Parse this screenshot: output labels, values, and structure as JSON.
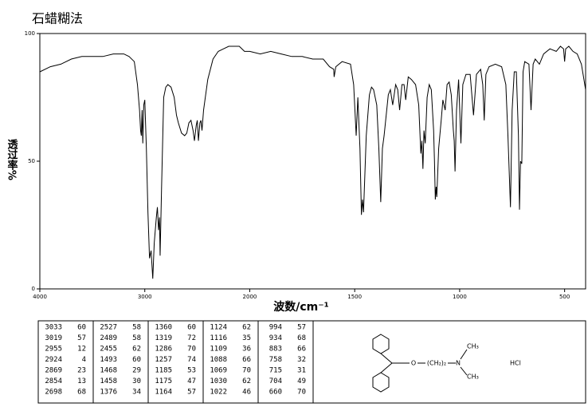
{
  "chart_data": {
    "type": "line",
    "title": "石蜡糊法",
    "xlabel": "波数/cm⁻¹",
    "ylabel": "透过率%",
    "xlim": [
      4000,
      400
    ],
    "x_scale_break": 2000,
    "xticks": [
      4000,
      3000,
      2000,
      1500,
      1000,
      500
    ],
    "ylim": [
      0,
      100
    ],
    "yticks": [
      0,
      50,
      100
    ],
    "color": "#000000",
    "x": [
      4000,
      3900,
      3800,
      3700,
      3600,
      3500,
      3400,
      3300,
      3200,
      3150,
      3100,
      3070,
      3050,
      3040,
      3033,
      3026,
      3019,
      3010,
      3000,
      2985,
      2970,
      2955,
      2940,
      2924,
      2910,
      2890,
      2880,
      2869,
      2860,
      2854,
      2840,
      2820,
      2800,
      2780,
      2750,
      2720,
      2698,
      2680,
      2650,
      2620,
      2600,
      2580,
      2560,
      2540,
      2527,
      2510,
      2500,
      2489,
      2475,
      2465,
      2455,
      2440,
      2400,
      2350,
      2300,
      2250,
      2200,
      2150,
      2100,
      2050,
      2000,
      1950,
      1900,
      1850,
      1800,
      1750,
      1700,
      1650,
      1620,
      1600,
      1598,
      1590,
      1560,
      1520,
      1505,
      1493,
      1485,
      1475,
      1468,
      1463,
      1458,
      1445,
      1430,
      1420,
      1410,
      1395,
      1385,
      1376,
      1368,
      1360,
      1350,
      1340,
      1330,
      1319,
      1305,
      1295,
      1286,
      1275,
      1265,
      1257,
      1245,
      1230,
      1210,
      1195,
      1185,
      1180,
      1175,
      1170,
      1164,
      1155,
      1145,
      1135,
      1124,
      1120,
      1116,
      1112,
      1109,
      1100,
      1088,
      1080,
      1069,
      1060,
      1050,
      1040,
      1030,
      1026,
      1022,
      1015,
      1005,
      994,
      985,
      970,
      950,
      934,
      920,
      900,
      890,
      883,
      875,
      860,
      830,
      800,
      780,
      770,
      758,
      750,
      740,
      730,
      720,
      715,
      710,
      704,
      698,
      690,
      670,
      660,
      650,
      640,
      620,
      600,
      570,
      540,
      520,
      505,
      500,
      495,
      480,
      460,
      440,
      420,
      400
    ],
    "values": [
      85,
      87,
      88,
      90,
      91,
      91,
      91,
      92,
      92,
      91,
      89,
      80,
      70,
      62,
      60,
      70,
      57,
      72,
      74,
      55,
      30,
      12,
      15,
      4,
      18,
      28,
      32,
      23,
      28,
      13,
      40,
      75,
      79,
      80,
      79,
      75,
      68,
      65,
      61,
      60,
      61,
      65,
      66,
      62,
      58,
      64,
      66,
      58,
      65,
      66,
      62,
      70,
      82,
      90,
      93,
      94,
      95,
      95,
      95,
      93,
      93,
      92,
      93,
      92,
      91,
      91,
      90,
      90,
      87,
      86,
      83,
      87,
      89,
      88,
      80,
      60,
      75,
      55,
      29,
      35,
      30,
      60,
      76,
      79,
      78,
      72,
      55,
      34,
      55,
      60,
      68,
      76,
      78,
      72,
      80,
      78,
      70,
      80,
      80,
      74,
      83,
      82,
      80,
      72,
      53,
      58,
      47,
      62,
      57,
      75,
      80,
      78,
      62,
      50,
      35,
      40,
      36,
      55,
      66,
      74,
      70,
      80,
      81,
      76,
      62,
      58,
      46,
      70,
      82,
      57,
      80,
      84,
      84,
      68,
      84,
      86,
      80,
      66,
      84,
      87,
      88,
      87,
      80,
      60,
      32,
      70,
      85,
      85,
      60,
      31,
      50,
      49,
      85,
      89,
      88,
      70,
      88,
      90,
      88,
      92,
      94,
      93,
      95,
      94,
      89,
      94,
      95,
      93,
      92,
      88,
      78
    ]
  },
  "peak_table": {
    "rows": [
      [
        3033,
        60,
        2527,
        58,
        1360,
        60,
        1124,
        62,
        994,
        57
      ],
      [
        3019,
        57,
        2489,
        58,
        1319,
        72,
        1116,
        35,
        934,
        68
      ],
      [
        2955,
        12,
        2455,
        62,
        1286,
        70,
        1109,
        36,
        883,
        66
      ],
      [
        2924,
        4,
        1493,
        60,
        1257,
        74,
        1088,
        66,
        758,
        32
      ],
      [
        2869,
        23,
        1468,
        29,
        1185,
        53,
        1069,
        70,
        715,
        31
      ],
      [
        2854,
        13,
        1458,
        30,
        1175,
        47,
        1030,
        62,
        704,
        49
      ],
      [
        2698,
        68,
        1376,
        34,
        1164,
        57,
        1022,
        46,
        660,
        70
      ]
    ]
  },
  "structure": {
    "labels": [
      "O",
      "(CH₂)₂",
      "N",
      "CH₃",
      "CH₃",
      "HCl"
    ]
  }
}
